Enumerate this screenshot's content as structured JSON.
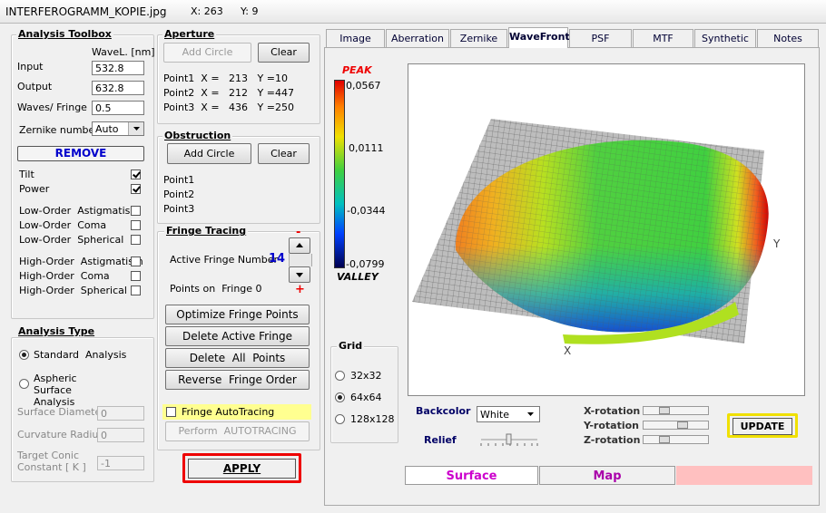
{
  "title_bar": {
    "file": "INTERFEROGRAMM_KOPIE.jpg",
    "x": "X: 263",
    "y": "Y: 9"
  },
  "toolbox": {
    "title": "Analysis Toolbox",
    "wavelength_header": "WaveL. [nm]",
    "input": {
      "label": "Input",
      "value": "532.8"
    },
    "output": {
      "label": "Output",
      "value": "632.8"
    },
    "waves_per_fringe": {
      "label": "Waves/ Fringe",
      "value": "0.5"
    },
    "zernike": {
      "label": "Zernike number",
      "value": "Auto"
    },
    "remove": "REMOVE",
    "terms": [
      {
        "label": "Tilt",
        "checked": true
      },
      {
        "label": "Power",
        "checked": true
      },
      {
        "label": "Low-Order  Astigmatism",
        "checked": false
      },
      {
        "label": "Low-Order  Coma",
        "checked": false
      },
      {
        "label": "Low-Order  Spherical",
        "checked": false
      },
      {
        "label": "High-Order  Astigmatism",
        "checked": false
      },
      {
        "label": "High-Order  Coma",
        "checked": false
      },
      {
        "label": "High-Order  Spherical",
        "checked": false
      }
    ]
  },
  "analysis_type": {
    "title": "Analysis Type",
    "options": [
      {
        "label": "Standard  Analysis",
        "selected": true
      },
      {
        "label": "Aspheric  Surface Analysis",
        "selected": false
      }
    ],
    "fields": [
      {
        "label": "Surface Diameter",
        "value": "0"
      },
      {
        "label": "Curvature Radius",
        "value": "0"
      },
      {
        "label": "Target Conic Constant [ K ]",
        "value": "-1"
      }
    ]
  },
  "apply": "APPLY",
  "aperture": {
    "title": "Aperture",
    "add": "Add Circle",
    "clear": "Clear",
    "points": [
      "Point1  X =   213   Y =10",
      "Point2  X =   212   Y =447",
      "Point3  X =   436   Y =250"
    ]
  },
  "obstruction": {
    "title": "Obstruction",
    "add": "Add Circle",
    "clear": "Clear",
    "points": [
      "Point1",
      "Point2",
      "Point3"
    ]
  },
  "fringe_tracing": {
    "title": "Fringe Tracing",
    "active_label": "Active Fringe Number",
    "active_value": "14",
    "minus": "-",
    "plus": "+",
    "points_on": "Points on  Fringe 0",
    "buttons": [
      "Optimize Fringe Points",
      "Delete Active Fringe",
      "Delete  All  Points",
      "Reverse  Fringe Order"
    ],
    "autotracing": {
      "label": "Fringe AutoTracing",
      "checked": false
    },
    "perform": "Perform  AUTOTRACING"
  },
  "tabs": {
    "items": [
      "Image",
      "Aberration",
      "Zernike",
      "WaveFront",
      "PSF",
      "MTF",
      "Synthetic",
      "Notes"
    ],
    "active": 3
  },
  "colorbar": {
    "peak": "PEAK",
    "valley": "VALLEY",
    "ticks": [
      "0,0567",
      "0,0111",
      "-0,0344",
      "-0,0799"
    ]
  },
  "plot": {
    "x_label": "X",
    "y_label": "Y"
  },
  "grid": {
    "title": "Grid",
    "options": [
      "32x32",
      "64x64",
      "128x128"
    ],
    "selected": 1
  },
  "controls": {
    "backcolor": {
      "label": "Backcolor",
      "value": "White"
    },
    "relief": "Relief",
    "rotations": [
      "X-rotation",
      "Y-rotation",
      "Z-rotation"
    ],
    "update": "UPDATE"
  },
  "view_tabs": {
    "items": [
      "Surface",
      "Map"
    ],
    "active": 0
  }
}
